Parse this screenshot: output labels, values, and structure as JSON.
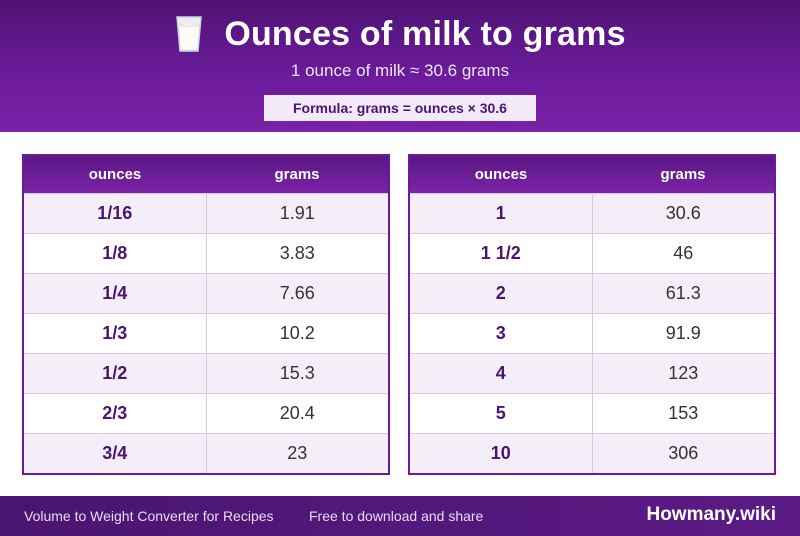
{
  "header": {
    "icon": "milk-glass-icon",
    "title": "Ounces of milk to grams",
    "subtitle": "1 ounce of milk ≈ 30.6 grams",
    "formula": "Formula: grams = ounces × 30.6"
  },
  "columns": {
    "ounces": "ounces",
    "grams": "grams"
  },
  "table_left": {
    "rows": [
      {
        "ounces": "1/16",
        "grams": "1.91"
      },
      {
        "ounces": "1/8",
        "grams": "3.83"
      },
      {
        "ounces": "1/4",
        "grams": "7.66"
      },
      {
        "ounces": "1/3",
        "grams": "10.2"
      },
      {
        "ounces": "1/2",
        "grams": "15.3"
      },
      {
        "ounces": "2/3",
        "grams": "20.4"
      },
      {
        "ounces": "3/4",
        "grams": "23"
      }
    ]
  },
  "table_right": {
    "rows": [
      {
        "ounces": "1",
        "grams": "30.6"
      },
      {
        "ounces": "1 1/2",
        "grams": "46"
      },
      {
        "ounces": "2",
        "grams": "61.3"
      },
      {
        "ounces": "3",
        "grams": "91.9"
      },
      {
        "ounces": "4",
        "grams": "123"
      },
      {
        "ounces": "5",
        "grams": "153"
      },
      {
        "ounces": "10",
        "grams": "306"
      }
    ]
  },
  "footer": {
    "left_text": "Volume to Weight Converter for Recipes",
    "middle_text": "Free to download and share",
    "brand": "Howmany.wiki"
  },
  "colors": {
    "primary": "#6a1b9a",
    "dark": "#4a1570",
    "stripe": "#f4eef9"
  }
}
